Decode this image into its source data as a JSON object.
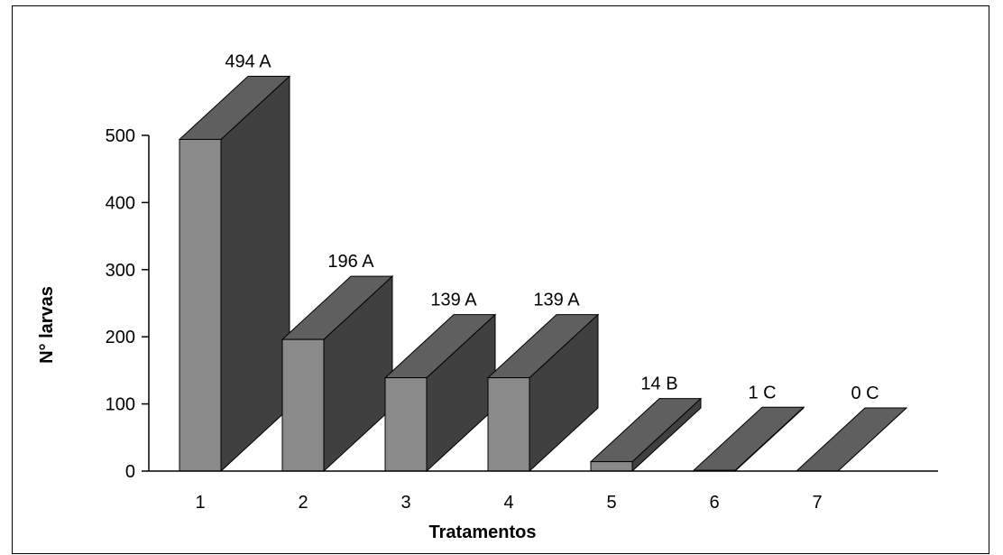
{
  "chart_data": {
    "type": "bar",
    "style": "3d-column",
    "title": "",
    "xlabel": "Tratamentos",
    "ylabel": "N° larvas",
    "categories": [
      "1",
      "2",
      "3",
      "4",
      "5",
      "6",
      "7"
    ],
    "values": [
      494,
      196,
      139,
      139,
      14,
      1,
      0
    ],
    "data_labels": [
      "494 A",
      "196 A",
      "139 A",
      "139 A",
      "14 B",
      "1 C",
      "0 C"
    ],
    "yticks": [
      "0",
      "100",
      "200",
      "300",
      "400",
      "500"
    ],
    "ylim": [
      0,
      500
    ],
    "grid": false,
    "legend": "none",
    "colors": {
      "front": "#8a8a8a",
      "top": "#5f5f5f",
      "side": "#404040",
      "outline": "#000000"
    }
  }
}
